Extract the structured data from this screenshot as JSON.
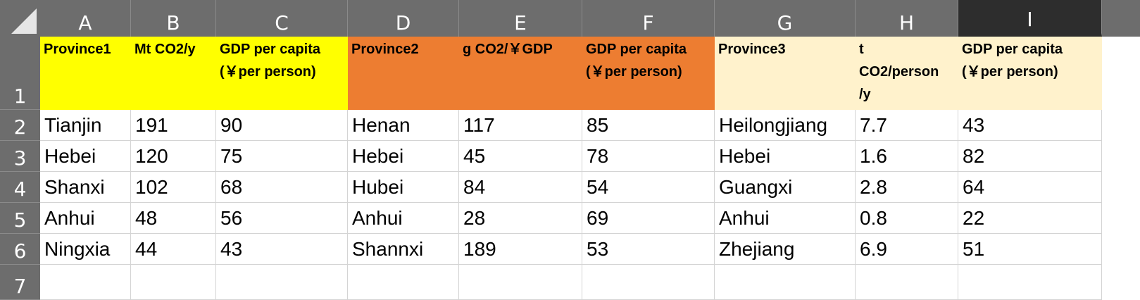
{
  "columns": [
    "A",
    "B",
    "C",
    "D",
    "E",
    "F",
    "G",
    "H",
    "I"
  ],
  "rows": [
    "1",
    "2",
    "3",
    "4",
    "5",
    "6",
    "7"
  ],
  "header": {
    "a": "Province1",
    "b": "Mt CO2/y",
    "c": "GDP per capita\n(￥per person)",
    "d": "Province2",
    "e": "g CO2/￥GDP",
    "f": "GDP per capita\n(￥per person)",
    "g": "Province3",
    "h": "t\nCO2/person\n/y",
    "i": "GDP per capita\n(￥per person)"
  },
  "data": [
    [
      "Tianjin",
      "191",
      "90",
      "Henan",
      "117",
      "85",
      "Heilongjiang",
      "7.7",
      "43"
    ],
    [
      "Hebei",
      "120",
      "75",
      "Hebei",
      "45",
      "78",
      "Hebei",
      "1.6",
      "82"
    ],
    [
      "Shanxi",
      "102",
      "68",
      "Hubei",
      "84",
      "54",
      "Guangxi",
      "2.8",
      "64"
    ],
    [
      "Anhui",
      "48",
      "56",
      "Anhui",
      "28",
      "69",
      "Anhui",
      "0.8",
      "22"
    ],
    [
      "Ningxia",
      "44",
      "43",
      "Shannxi",
      "189",
      "53",
      "Zhejiang",
      "6.9",
      "51"
    ]
  ],
  "colors": {
    "group1": "#ffff00",
    "group2": "#ed7d31",
    "group3": "#fff2cc",
    "header_bg": "#6d6d6d",
    "selected_col_bg": "#2d2d2d"
  },
  "selected_column": "I"
}
